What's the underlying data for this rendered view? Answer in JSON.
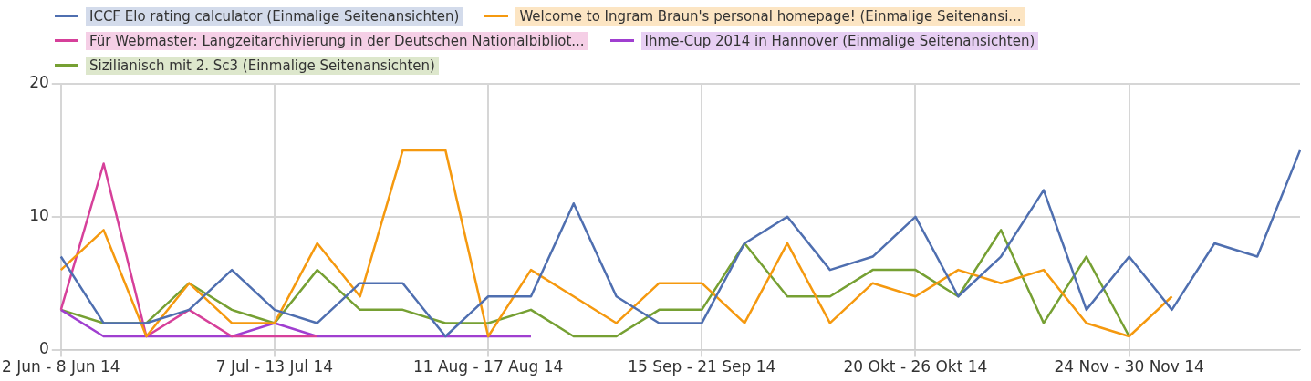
{
  "chart_data": {
    "type": "line",
    "categories": [
      "2 Jun - 8 Jun 14",
      null,
      null,
      null,
      null,
      "7 Jul - 13 Jul 14",
      null,
      null,
      null,
      null,
      "11 Aug - 17 Aug 14",
      null,
      null,
      null,
      null,
      "15 Sep - 21 Sep 14",
      null,
      null,
      null,
      null,
      "20 Okt - 26 Okt 14",
      null,
      null,
      null,
      null,
      "24 Nov - 30 Nov 14",
      null,
      null,
      null,
      null
    ],
    "series": [
      {
        "name": "ICCF Elo rating calculator (Einmalige Seitenansichten)",
        "color": "#4f6fb0",
        "values": [
          7,
          2,
          2,
          3,
          6,
          3,
          2,
          5,
          5,
          1,
          4,
          4,
          11,
          4,
          2,
          2,
          8,
          10,
          6,
          7,
          10,
          4,
          7,
          12,
          3,
          7,
          3,
          8,
          7,
          15
        ]
      },
      {
        "name": "Welcome to Ingram Braun's personal homepage! (Einmalige Seitenansi...",
        "color": "#f5990f",
        "values": [
          6,
          9,
          1,
          5,
          2,
          2,
          8,
          4,
          15,
          15,
          1,
          6,
          4,
          2,
          5,
          5,
          2,
          8,
          2,
          5,
          4,
          6,
          5,
          6,
          2,
          1,
          4,
          null,
          null,
          null
        ]
      },
      {
        "name": "Für Webmaster: Langzeitarchivierung in der Deutschen Nationalbibliot...",
        "color": "#d6409a",
        "values": [
          3,
          14,
          1,
          3,
          1,
          1,
          1,
          null,
          null,
          null,
          null,
          null,
          null,
          null,
          null,
          null,
          null,
          null,
          null,
          null,
          null,
          null,
          null,
          null,
          null,
          null,
          null,
          null,
          null,
          null
        ]
      },
      {
        "name": "Ihme-Cup 2014 in Hannover (Einmalige Seitenansichten)",
        "color": "#a03fd0",
        "values": [
          3,
          1,
          1,
          1,
          1,
          2,
          1,
          1,
          1,
          1,
          1,
          1,
          null,
          null,
          null,
          null,
          null,
          null,
          null,
          null,
          null,
          null,
          null,
          null,
          null,
          null,
          null,
          null,
          null,
          null
        ]
      },
      {
        "name": "Sizilianisch mit 2. Sc3 (Einmalige Seitenansichten)",
        "color": "#76a033",
        "values": [
          3,
          2,
          2,
          5,
          3,
          2,
          6,
          3,
          3,
          2,
          2,
          3,
          1,
          1,
          3,
          3,
          8,
          4,
          4,
          6,
          6,
          4,
          9,
          2,
          7,
          1,
          null,
          null,
          null,
          null
        ]
      }
    ],
    "ylim": [
      0,
      20
    ],
    "yticks": [
      0,
      10,
      20
    ],
    "grid": true,
    "legend": "top",
    "marker": "none",
    "line_style": "solid"
  }
}
